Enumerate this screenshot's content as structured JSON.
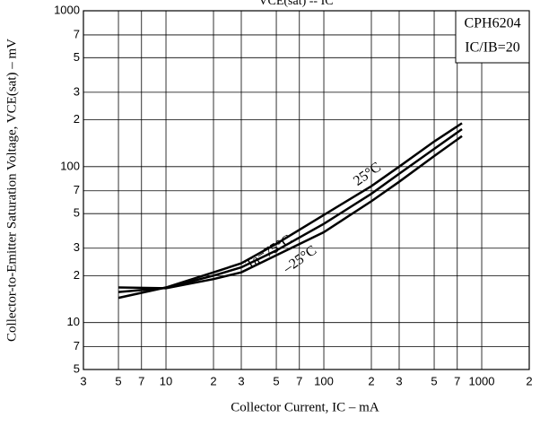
{
  "chart_data": {
    "type": "line",
    "title": "VCE(sat) -- IC",
    "x_label": "Collector Current, IC  – mA",
    "y_label": "Collector-to-Emitter Saturation Voltage, VCE(sat)  – mV",
    "annotations": [
      "CPH6204",
      "IC/IB=20"
    ],
    "log_x": true,
    "log_y": true,
    "grid": true,
    "x": [
      5,
      10,
      20,
      30,
      50,
      100,
      200,
      300,
      500,
      750
    ],
    "series": [
      {
        "name": "Ta=75°C",
        "color": "#000000",
        "values": [
          14.4,
          16.8,
          21,
          24,
          32,
          49,
          75,
          100,
          145,
          190
        ]
      },
      {
        "name": "25°C",
        "color": "#000000",
        "values": [
          15.7,
          16.7,
          20,
          22.6,
          29,
          43,
          67,
          90,
          130,
          174
        ]
      },
      {
        "name": "–25°C",
        "color": "#000000",
        "values": [
          16.8,
          16.6,
          19,
          21,
          27,
          38,
          60,
          80,
          117,
          157
        ]
      }
    ],
    "xlim": [
      3,
      2000
    ],
    "xticks": [
      3,
      5,
      7,
      10,
      {
        "value": 20,
        "label": "2"
      },
      {
        "value": 30,
        "label": "3"
      },
      {
        "value": 50,
        "label": "5"
      },
      {
        "value": 70,
        "label": "7"
      },
      100,
      {
        "value": 200,
        "label": "2"
      },
      {
        "value": 300,
        "label": "3"
      },
      {
        "value": 500,
        "label": "5"
      },
      {
        "value": 700,
        "label": "7"
      },
      1000,
      {
        "value": 2000,
        "label": "2"
      }
    ],
    "ylim": [
      5,
      1000
    ],
    "yticks": [
      5,
      7,
      10,
      {
        "value": 20,
        "label": "2"
      },
      {
        "value": 30,
        "label": "3"
      },
      {
        "value": 50,
        "label": "5"
      },
      {
        "value": 70,
        "label": "7"
      },
      100,
      {
        "value": 200,
        "label": "2"
      },
      {
        "value": 300,
        "label": "3"
      },
      {
        "value": 500,
        "label": "5"
      },
      {
        "value": 700,
        "label": "7"
      },
      1000
    ]
  }
}
